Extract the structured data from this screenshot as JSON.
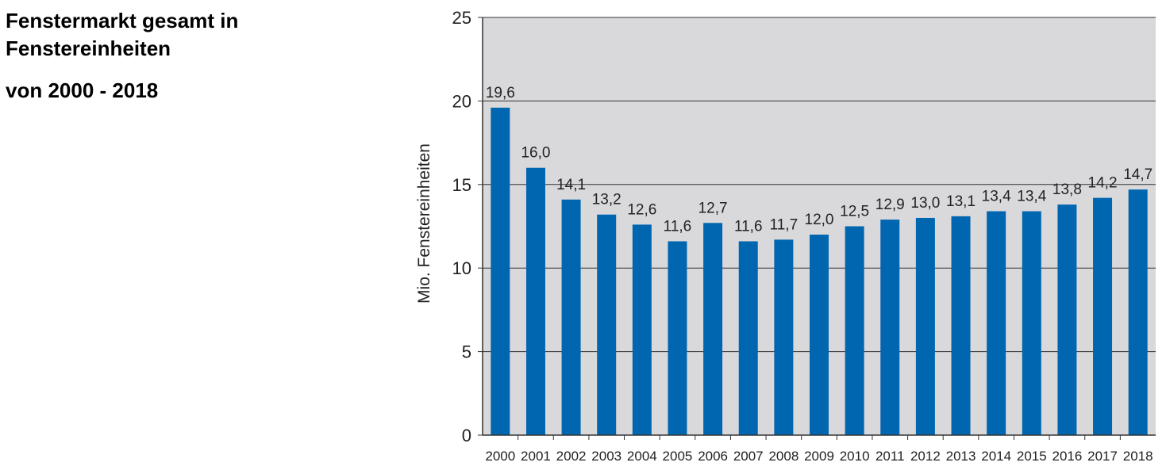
{
  "title_line1": "Fenstermarkt gesamt in",
  "title_line2": "Fenstereinheiten",
  "subtitle": "von 2000 - 2018",
  "chart_data": {
    "type": "bar",
    "categories": [
      "2000",
      "2001",
      "2002",
      "2003",
      "2004",
      "2005",
      "2006",
      "2007",
      "2008",
      "2009",
      "2010",
      "2011",
      "2012",
      "2013",
      "2014",
      "2015",
      "2016",
      "2017",
      "2018"
    ],
    "values": [
      19.6,
      16.0,
      14.1,
      13.2,
      12.6,
      11.6,
      12.7,
      11.6,
      11.7,
      12.0,
      12.5,
      12.9,
      13.0,
      13.1,
      13.4,
      13.4,
      13.8,
      14.2,
      14.7
    ],
    "value_labels": [
      "19,6",
      "16,0",
      "14,1",
      "13,2",
      "12,6",
      "11,6",
      "12,7",
      "11,6",
      "11,7",
      "12,0",
      "12,5",
      "12,9",
      "13,0",
      "13,1",
      "13,4",
      "13,4",
      "13,8",
      "14,2",
      "14,7"
    ],
    "ylabel": "Mio. Fenstereinheiten",
    "xlabel": "",
    "ylim": [
      0,
      25
    ],
    "yticks": [
      0,
      5,
      10,
      15,
      20,
      25
    ],
    "grid": true,
    "colors": {
      "bar": "#0066b0",
      "plot_bg": "#d9d9dc",
      "grid": "#333333"
    }
  }
}
